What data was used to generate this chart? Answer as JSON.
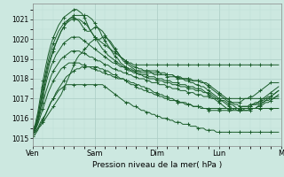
{
  "title": "",
  "xlabel": "Pression niveau de la mer( hPa )",
  "ylabel": "",
  "xlim": [
    0,
    96
  ],
  "ylim": [
    1014.6,
    1021.8
  ],
  "yticks": [
    1015,
    1016,
    1017,
    1018,
    1019,
    1020,
    1021
  ],
  "xtick_positions": [
    0,
    24,
    48,
    72,
    96
  ],
  "xtick_labels": [
    "Ven",
    "Sam",
    "Dim",
    "Lun",
    "M"
  ],
  "background_color": "#cce8e0",
  "grid_major_color": "#aaccc4",
  "grid_minor_color": "#bdddd6",
  "line_color": "#1a5c2a",
  "series": [
    [
      1015.2,
      1015.3,
      1015.5,
      1015.6,
      1015.8,
      1016.0,
      1016.2,
      1016.4,
      1016.6,
      1016.8,
      1017.0,
      1017.2,
      1017.5,
      1017.8,
      1018.1,
      1018.4,
      1018.7,
      1019.0,
      1019.2,
      1019.3,
      1019.5,
      1019.6,
      1019.8,
      1019.9,
      1020.0,
      1020.0,
      1019.9,
      1019.8,
      1019.7,
      1019.6,
      1019.5,
      1019.4,
      1019.3,
      1019.2,
      1019.1,
      1019.0,
      1018.9,
      1018.8,
      1018.8,
      1018.7,
      1018.7,
      1018.7,
      1018.7,
      1018.7,
      1018.7,
      1018.7,
      1018.7,
      1018.7,
      1018.7,
      1018.7,
      1018.7,
      1018.7,
      1018.7,
      1018.7,
      1018.7,
      1018.7,
      1018.7,
      1018.7,
      1018.7,
      1018.7,
      1018.7,
      1018.7,
      1018.7,
      1018.7,
      1018.7,
      1018.7,
      1018.7,
      1018.7,
      1018.7,
      1018.7,
      1018.7,
      1018.7,
      1018.7,
      1018.7,
      1018.7,
      1018.7,
      1018.7,
      1018.7,
      1018.7,
      1018.7,
      1018.7,
      1018.7,
      1018.7,
      1018.7,
      1018.7,
      1018.7,
      1018.7,
      1018.7,
      1018.7,
      1018.7,
      1018.7,
      1018.7,
      1018.7,
      1018.7,
      1018.7,
      1018.7
    ],
    [
      1015.2,
      1015.3,
      1015.5,
      1015.8,
      1016.0,
      1016.2,
      1016.5,
      1016.8,
      1017.0,
      1017.3,
      1017.5,
      1017.7,
      1017.9,
      1018.1,
      1018.2,
      1018.3,
      1018.4,
      1018.5,
      1018.5,
      1018.6,
      1018.6,
      1018.6,
      1018.6,
      1018.6,
      1018.6,
      1018.6,
      1018.5,
      1018.5,
      1018.4,
      1018.4,
      1018.3,
      1018.2,
      1018.2,
      1018.1,
      1018.0,
      1018.0,
      1017.9,
      1017.8,
      1017.7,
      1017.7,
      1017.6,
      1017.5,
      1017.5,
      1017.4,
      1017.4,
      1017.3,
      1017.3,
      1017.2,
      1017.2,
      1017.1,
      1017.1,
      1017.0,
      1017.0,
      1016.9,
      1016.9,
      1016.9,
      1016.8,
      1016.8,
      1016.8,
      1016.7,
      1016.7,
      1016.7,
      1016.6,
      1016.6,
      1016.6,
      1016.6,
      1016.5,
      1016.5,
      1016.5,
      1016.5,
      1016.5,
      1016.5,
      1016.5,
      1016.5,
      1016.5,
      1016.5,
      1016.5,
      1016.5,
      1016.5,
      1016.5,
      1016.5,
      1016.5,
      1016.5,
      1016.5,
      1016.5,
      1016.5,
      1016.5,
      1016.5,
      1016.5,
      1016.5,
      1016.5,
      1016.5,
      1016.5,
      1016.5,
      1016.5,
      1016.5
    ],
    [
      1015.1,
      1015.2,
      1015.4,
      1015.7,
      1015.9,
      1016.2,
      1016.5,
      1016.8,
      1017.0,
      1017.2,
      1017.4,
      1017.5,
      1017.6,
      1017.7,
      1017.7,
      1017.7,
      1017.7,
      1017.7,
      1017.7,
      1017.7,
      1017.7,
      1017.7,
      1017.7,
      1017.7,
      1017.7,
      1017.7,
      1017.7,
      1017.7,
      1017.6,
      1017.5,
      1017.4,
      1017.3,
      1017.2,
      1017.1,
      1017.0,
      1016.9,
      1016.8,
      1016.8,
      1016.7,
      1016.6,
      1016.6,
      1016.5,
      1016.4,
      1016.4,
      1016.3,
      1016.3,
      1016.2,
      1016.2,
      1016.1,
      1016.1,
      1016.0,
      1016.0,
      1016.0,
      1015.9,
      1015.9,
      1015.8,
      1015.8,
      1015.8,
      1015.7,
      1015.7,
      1015.7,
      1015.6,
      1015.6,
      1015.6,
      1015.5,
      1015.5,
      1015.5,
      1015.4,
      1015.4,
      1015.4,
      1015.4,
      1015.3,
      1015.3,
      1015.3,
      1015.3,
      1015.3,
      1015.3,
      1015.3,
      1015.3,
      1015.3,
      1015.3,
      1015.3,
      1015.3,
      1015.3,
      1015.3,
      1015.3,
      1015.3,
      1015.3,
      1015.3,
      1015.3,
      1015.3,
      1015.3,
      1015.3,
      1015.3,
      1015.3,
      1015.3
    ],
    [
      1015.2,
      1015.4,
      1015.7,
      1016.1,
      1016.5,
      1016.9,
      1017.3,
      1017.6,
      1017.9,
      1018.1,
      1018.3,
      1018.5,
      1018.6,
      1018.7,
      1018.8,
      1018.8,
      1018.8,
      1018.8,
      1018.8,
      1018.7,
      1018.7,
      1018.6,
      1018.6,
      1018.5,
      1018.5,
      1018.4,
      1018.4,
      1018.3,
      1018.3,
      1018.2,
      1018.2,
      1018.1,
      1018.1,
      1018.0,
      1018.0,
      1018.0,
      1017.9,
      1017.9,
      1017.8,
      1017.8,
      1017.7,
      1017.7,
      1017.6,
      1017.6,
      1017.5,
      1017.5,
      1017.4,
      1017.3,
      1017.3,
      1017.2,
      1017.2,
      1017.1,
      1017.1,
      1017.0,
      1017.0,
      1016.9,
      1016.9,
      1016.8,
      1016.8,
      1016.8,
      1016.7,
      1016.7,
      1016.6,
      1016.6,
      1016.6,
      1016.5,
      1016.5,
      1016.5,
      1016.4,
      1016.4,
      1016.4,
      1016.4,
      1016.4,
      1016.4,
      1016.4,
      1016.4,
      1016.4,
      1016.4,
      1016.5,
      1016.5,
      1016.5,
      1016.6,
      1016.6,
      1016.6,
      1016.7,
      1016.7,
      1016.8,
      1016.8,
      1016.9,
      1016.9,
      1017.0,
      1017.1,
      1017.1,
      1017.2,
      1017.3,
      1017.4
    ],
    [
      1015.2,
      1015.4,
      1015.8,
      1016.3,
      1016.8,
      1017.3,
      1017.7,
      1018.1,
      1018.4,
      1018.6,
      1018.8,
      1019.0,
      1019.1,
      1019.2,
      1019.3,
      1019.4,
      1019.4,
      1019.4,
      1019.4,
      1019.3,
      1019.3,
      1019.2,
      1019.1,
      1019.1,
      1019.0,
      1018.9,
      1018.9,
      1018.8,
      1018.7,
      1018.7,
      1018.6,
      1018.5,
      1018.5,
      1018.4,
      1018.4,
      1018.3,
      1018.3,
      1018.2,
      1018.2,
      1018.1,
      1018.1,
      1018.0,
      1018.0,
      1018.0,
      1017.9,
      1017.9,
      1017.8,
      1017.8,
      1017.8,
      1017.7,
      1017.7,
      1017.7,
      1017.6,
      1017.6,
      1017.5,
      1017.5,
      1017.5,
      1017.4,
      1017.4,
      1017.4,
      1017.3,
      1017.3,
      1017.3,
      1017.2,
      1017.2,
      1017.2,
      1017.1,
      1017.1,
      1017.1,
      1017.0,
      1017.0,
      1017.0,
      1017.0,
      1017.0,
      1017.0,
      1017.0,
      1017.0,
      1017.0,
      1017.0,
      1017.0,
      1017.0,
      1017.0,
      1017.0,
      1017.0,
      1017.0,
      1017.0,
      1017.0,
      1017.0,
      1017.0,
      1017.0,
      1017.0,
      1017.0,
      1017.0,
      1017.0,
      1017.0,
      1017.0
    ],
    [
      1015.3,
      1015.5,
      1015.9,
      1016.5,
      1017.1,
      1017.7,
      1018.2,
      1018.6,
      1018.9,
      1019.2,
      1019.4,
      1019.6,
      1019.8,
      1019.9,
      1020.0,
      1020.1,
      1020.1,
      1020.1,
      1020.1,
      1020.0,
      1019.9,
      1019.8,
      1019.7,
      1019.6,
      1019.5,
      1019.4,
      1019.3,
      1019.2,
      1019.1,
      1019.0,
      1018.9,
      1018.8,
      1018.8,
      1018.7,
      1018.6,
      1018.6,
      1018.5,
      1018.4,
      1018.4,
      1018.3,
      1018.3,
      1018.2,
      1018.2,
      1018.1,
      1018.1,
      1018.0,
      1018.0,
      1018.0,
      1017.9,
      1017.9,
      1017.9,
      1017.8,
      1017.8,
      1017.8,
      1017.7,
      1017.7,
      1017.7,
      1017.6,
      1017.6,
      1017.6,
      1017.5,
      1017.5,
      1017.5,
      1017.4,
      1017.4,
      1017.4,
      1017.3,
      1017.3,
      1017.3,
      1017.2,
      1017.1,
      1017.0,
      1016.9,
      1016.9,
      1016.8,
      1016.7,
      1016.6,
      1016.5,
      1016.5,
      1016.4,
      1016.4,
      1016.4,
      1016.4,
      1016.4,
      1016.5,
      1016.5,
      1016.5,
      1016.6,
      1016.6,
      1016.7,
      1016.8,
      1016.8,
      1016.9,
      1017.0,
      1017.1,
      1017.2
    ],
    [
      1015.3,
      1015.5,
      1015.9,
      1016.5,
      1017.2,
      1017.9,
      1018.5,
      1019.0,
      1019.4,
      1019.8,
      1020.1,
      1020.4,
      1020.6,
      1020.8,
      1021.0,
      1021.1,
      1021.1,
      1021.0,
      1020.9,
      1020.7,
      1020.5,
      1020.4,
      1020.4,
      1020.5,
      1020.6,
      1020.6,
      1020.5,
      1020.4,
      1020.2,
      1020.0,
      1019.8,
      1019.6,
      1019.4,
      1019.3,
      1019.1,
      1019.0,
      1018.9,
      1018.8,
      1018.7,
      1018.6,
      1018.6,
      1018.5,
      1018.5,
      1018.4,
      1018.4,
      1018.4,
      1018.3,
      1018.3,
      1018.3,
      1018.3,
      1018.2,
      1018.2,
      1018.2,
      1018.2,
      1018.2,
      1018.1,
      1018.1,
      1018.1,
      1018.0,
      1018.0,
      1018.0,
      1018.0,
      1017.9,
      1017.9,
      1017.9,
      1017.9,
      1017.8,
      1017.8,
      1017.7,
      1017.6,
      1017.5,
      1017.4,
      1017.3,
      1017.2,
      1017.1,
      1017.0,
      1016.9,
      1016.8,
      1016.7,
      1016.7,
      1016.6,
      1016.6,
      1016.6,
      1016.6,
      1016.6,
      1016.7,
      1016.7,
      1016.7,
      1016.8,
      1016.8,
      1016.9,
      1016.9,
      1017.0,
      1017.0,
      1017.1,
      1017.1
    ],
    [
      1015.3,
      1015.6,
      1016.1,
      1016.8,
      1017.5,
      1018.1,
      1018.7,
      1019.1,
      1019.5,
      1019.8,
      1020.1,
      1020.4,
      1020.6,
      1020.8,
      1020.9,
      1021.0,
      1021.0,
      1021.0,
      1021.0,
      1020.9,
      1020.8,
      1020.7,
      1020.5,
      1020.3,
      1020.1,
      1019.9,
      1019.7,
      1019.5,
      1019.4,
      1019.2,
      1019.1,
      1019.0,
      1018.9,
      1018.8,
      1018.7,
      1018.6,
      1018.6,
      1018.5,
      1018.5,
      1018.4,
      1018.4,
      1018.4,
      1018.3,
      1018.3,
      1018.3,
      1018.3,
      1018.3,
      1018.2,
      1018.2,
      1018.2,
      1018.2,
      1018.2,
      1018.1,
      1018.1,
      1018.1,
      1018.1,
      1018.0,
      1018.0,
      1018.0,
      1018.0,
      1018.0,
      1017.9,
      1017.9,
      1017.9,
      1017.9,
      1017.8,
      1017.8,
      1017.7,
      1017.6,
      1017.5,
      1017.4,
      1017.3,
      1017.2,
      1017.1,
      1017.0,
      1016.9,
      1016.8,
      1016.8,
      1016.8,
      1016.8,
      1016.8,
      1016.9,
      1017.0,
      1017.0,
      1017.1,
      1017.1,
      1017.2,
      1017.3,
      1017.4,
      1017.5,
      1017.6,
      1017.7,
      1017.8,
      1017.8,
      1017.8,
      1017.8
    ],
    [
      1015.4,
      1015.7,
      1016.3,
      1017.1,
      1017.9,
      1018.6,
      1019.2,
      1019.7,
      1020.1,
      1020.4,
      1020.7,
      1020.9,
      1021.1,
      1021.2,
      1021.3,
      1021.4,
      1021.5,
      1021.5,
      1021.4,
      1021.3,
      1021.1,
      1020.8,
      1020.5,
      1020.3,
      1020.1,
      1020.0,
      1020.0,
      1020.1,
      1020.1,
      1020.0,
      1019.9,
      1019.7,
      1019.5,
      1019.3,
      1019.1,
      1018.9,
      1018.8,
      1018.7,
      1018.6,
      1018.5,
      1018.4,
      1018.4,
      1018.4,
      1018.4,
      1018.4,
      1018.4,
      1018.4,
      1018.4,
      1018.4,
      1018.3,
      1018.3,
      1018.3,
      1018.2,
      1018.2,
      1018.2,
      1018.1,
      1018.1,
      1018.0,
      1018.0,
      1017.9,
      1017.9,
      1017.8,
      1017.8,
      1017.7,
      1017.7,
      1017.6,
      1017.6,
      1017.5,
      1017.4,
      1017.3,
      1017.2,
      1017.1,
      1017.0,
      1016.9,
      1016.9,
      1016.8,
      1016.7,
      1016.7,
      1016.6,
      1016.5,
      1016.5,
      1016.4,
      1016.4,
      1016.4,
      1016.4,
      1016.5,
      1016.5,
      1016.6,
      1016.7,
      1016.8,
      1016.9,
      1017.0,
      1017.1,
      1017.2,
      1017.3,
      1017.4
    ],
    [
      1015.3,
      1015.6,
      1016.1,
      1016.8,
      1017.6,
      1018.3,
      1018.9,
      1019.4,
      1019.8,
      1020.1,
      1020.4,
      1020.6,
      1020.8,
      1020.9,
      1021.0,
      1021.1,
      1021.2,
      1021.2,
      1021.2,
      1021.2,
      1021.2,
      1021.2,
      1021.1,
      1021.0,
      1020.8,
      1020.6,
      1020.4,
      1020.1,
      1019.9,
      1019.7,
      1019.5,
      1019.3,
      1019.1,
      1019.0,
      1018.8,
      1018.7,
      1018.6,
      1018.5,
      1018.4,
      1018.4,
      1018.3,
      1018.3,
      1018.2,
      1018.2,
      1018.2,
      1018.1,
      1018.1,
      1018.1,
      1018.0,
      1018.0,
      1018.0,
      1017.9,
      1017.9,
      1017.9,
      1017.8,
      1017.8,
      1017.8,
      1017.7,
      1017.7,
      1017.7,
      1017.6,
      1017.6,
      1017.6,
      1017.5,
      1017.5,
      1017.5,
      1017.4,
      1017.3,
      1017.2,
      1017.1,
      1017.0,
      1016.9,
      1016.8,
      1016.7,
      1016.6,
      1016.5,
      1016.5,
      1016.4,
      1016.4,
      1016.4,
      1016.4,
      1016.4,
      1016.5,
      1016.5,
      1016.6,
      1016.7,
      1016.7,
      1016.8,
      1016.9,
      1017.0,
      1017.1,
      1017.2,
      1017.3,
      1017.4,
      1017.5,
      1017.6
    ]
  ]
}
